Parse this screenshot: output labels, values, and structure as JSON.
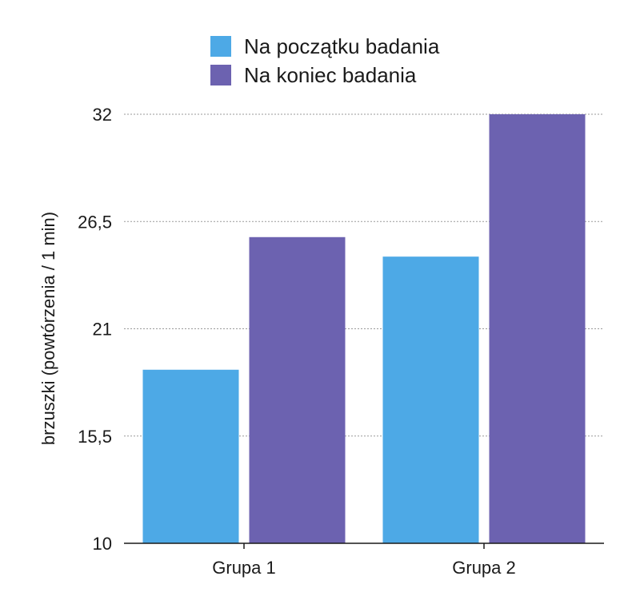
{
  "chart_data": {
    "type": "bar",
    "title": "",
    "xlabel": "",
    "ylabel": "brzuszki (powtórzenia / 1 min)",
    "categories": [
      "Grupa 1",
      "Grupa 2"
    ],
    "series": [
      {
        "name": "Na początku badania",
        "color": "#4DA9E6",
        "values": [
          18.9,
          24.7
        ]
      },
      {
        "name": "Na koniec badania",
        "color": "#6C62B0",
        "values": [
          25.7,
          32
        ]
      }
    ],
    "ylim": [
      10,
      32
    ],
    "yticks": [
      10,
      15.5,
      21,
      26.5,
      32
    ],
    "ytick_labels": [
      "10",
      "15,5",
      "21",
      "26,5",
      "32"
    ],
    "grid": true,
    "legend_position": "top-center"
  }
}
